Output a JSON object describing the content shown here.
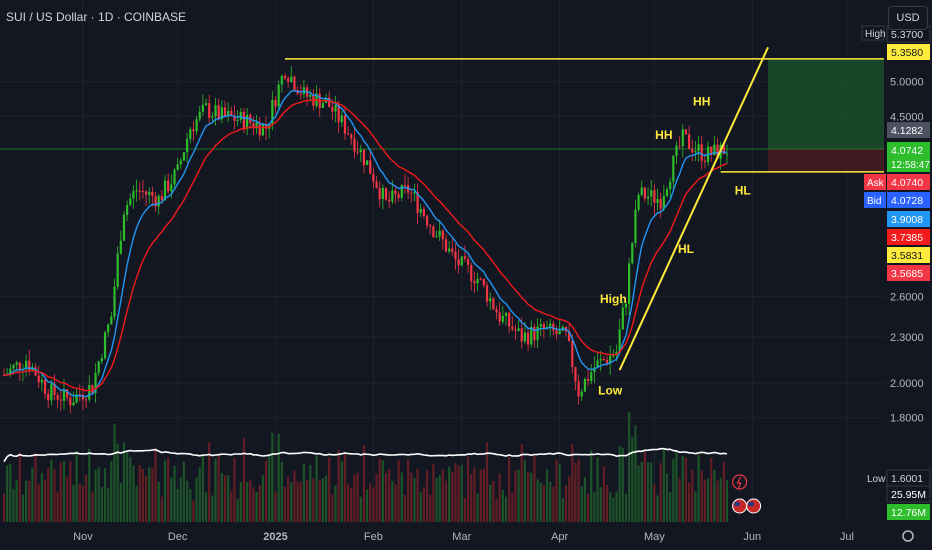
{
  "header": {
    "symbol_title": "SUI / US Dollar · 1D · COINBASE",
    "currency_button": "USD"
  },
  "colors": {
    "background": "#131722",
    "grid": "#1f2330",
    "axis_text": "#b2b5be",
    "candle_up": "#2ebd2b",
    "candle_down": "#f23645",
    "ma_fast": "#2196f3",
    "ma_slow": "#f21a1a",
    "annotation": "#ffeb3b",
    "volume_avg": "#ffffff",
    "target_zone": "#1b4d2a",
    "stop_zone": "#4a1a22"
  },
  "chart_data": {
    "type": "candlestick",
    "title": "SUI / US Dollar · 1D · COINBASE",
    "y_scale": "log",
    "ylim": [
      1.48,
      5.85
    ],
    "y_ticks": [
      "5.0000",
      "4.5000",
      "2.6000",
      "2.3000",
      "2.0000",
      "1.8000"
    ],
    "x_ticks": [
      "Nov",
      "Dec",
      "2025",
      "Feb",
      "Mar",
      "Apr",
      "May",
      "Jun",
      "Jul"
    ],
    "x_range": [
      "2024-10-07",
      "2025-07-14"
    ],
    "close_series_approx": [
      [
        "2024-10-07",
        2.05
      ],
      [
        "2024-10-14",
        2.15
      ],
      [
        "2024-10-21",
        1.95
      ],
      [
        "2024-10-28",
        1.9
      ],
      [
        "2024-11-04",
        1.98
      ],
      [
        "2024-11-10",
        2.45
      ],
      [
        "2024-11-14",
        3.4
      ],
      [
        "2024-11-18",
        3.6
      ],
      [
        "2024-11-25",
        3.5
      ],
      [
        "2024-12-01",
        3.8
      ],
      [
        "2024-12-05",
        4.35
      ],
      [
        "2024-12-10",
        4.6
      ],
      [
        "2024-12-15",
        4.5
      ],
      [
        "2024-12-22",
        4.45
      ],
      [
        "2024-12-29",
        4.35
      ],
      [
        "2025-01-04",
        5.2
      ],
      [
        "2025-01-10",
        4.8
      ],
      [
        "2025-01-17",
        4.7
      ],
      [
        "2025-01-24",
        4.3
      ],
      [
        "2025-01-30",
        3.9
      ],
      [
        "2025-02-05",
        3.45
      ],
      [
        "2025-02-12",
        3.6
      ],
      [
        "2025-02-20",
        3.2
      ],
      [
        "2025-02-27",
        2.9
      ],
      [
        "2025-03-06",
        2.75
      ],
      [
        "2025-03-13",
        2.45
      ],
      [
        "2025-03-20",
        2.3
      ],
      [
        "2025-03-27",
        2.35
      ],
      [
        "2025-04-03",
        2.3
      ],
      [
        "2025-04-07",
        1.95
      ],
      [
        "2025-04-12",
        2.1
      ],
      [
        "2025-04-19",
        2.2
      ],
      [
        "2025-04-22",
        2.6
      ],
      [
        "2025-04-26",
        3.55
      ],
      [
        "2025-05-03",
        3.5
      ],
      [
        "2025-05-10",
        4.2
      ],
      [
        "2025-05-17",
        4.0
      ],
      [
        "2025-05-24",
        4.07
      ]
    ],
    "moving_averages": [
      {
        "color": "#2196f3"
      },
      {
        "color": "#f21a1a"
      }
    ],
    "horizontal_lines": [
      {
        "price": 5.358,
        "from": "2025-01-04"
      },
      {
        "price": 3.8,
        "from": "2025-05-22"
      }
    ],
    "trendline": {
      "from": [
        "2025-04-20",
        2.08
      ],
      "to": [
        "2025-06-06",
        5.55
      ]
    },
    "annotations": [
      {
        "text": "HH",
        "date": "2025-05-16",
        "price": 4.65
      },
      {
        "text": "HH",
        "date": "2025-05-04",
        "price": 4.2
      },
      {
        "text": "HL",
        "date": "2025-05-29",
        "price": 3.55
      },
      {
        "text": "HL",
        "date": "2025-05-11",
        "price": 2.97
      },
      {
        "text": "High",
        "date": "2025-04-18",
        "price": 2.55
      },
      {
        "text": "Low",
        "date": "2025-04-17",
        "price": 1.93
      }
    ],
    "position_tool": {
      "entry": 4.0742,
      "target": 5.358,
      "stop": 3.8,
      "from": "2025-06-06",
      "to": "2025-07-14"
    },
    "price_labels": [
      {
        "text": "High",
        "value": "5.3700",
        "bg": "#131722",
        "fg": "#d1d4dc",
        "tag": "High"
      },
      {
        "text": "",
        "value": "5.3580",
        "bg": "#ffeb3b",
        "fg": "#131722"
      },
      {
        "text": "",
        "value": "4.1282",
        "bg": "#4d5261",
        "fg": "#ffffff"
      },
      {
        "text": "",
        "value": "4.0742",
        "sub": "12:58:47",
        "bg": "#2ebd2b",
        "fg": "#ffffff"
      },
      {
        "text": "Ask",
        "value": "4.0740",
        "bg": "#f23645",
        "fg": "#ffffff"
      },
      {
        "text": "Bid",
        "value": "4.0728",
        "bg": "#2962ff",
        "fg": "#ffffff"
      },
      {
        "text": "",
        "value": "3.9008",
        "bg": "#2196f3",
        "fg": "#ffffff"
      },
      {
        "text": "",
        "value": "3.7385",
        "bg": "#f21a1a",
        "fg": "#ffffff"
      },
      {
        "text": "",
        "value": "3.5831",
        "bg": "#ffeb3b",
        "fg": "#131722"
      },
      {
        "text": "",
        "value": "3.5685",
        "bg": "#f23645",
        "fg": "#ffffff"
      },
      {
        "text": "Low",
        "value": "1.6001",
        "bg": "#131722",
        "fg": "#d1d4dc"
      },
      {
        "text": "",
        "value": "25.95M",
        "bg": "#131722",
        "fg": "#ffffff"
      },
      {
        "text": "",
        "value": "12.76M",
        "bg": "#2ebd2b",
        "fg": "#ffffff"
      }
    ],
    "volume": {
      "visible": true,
      "avg_line": true
    }
  }
}
